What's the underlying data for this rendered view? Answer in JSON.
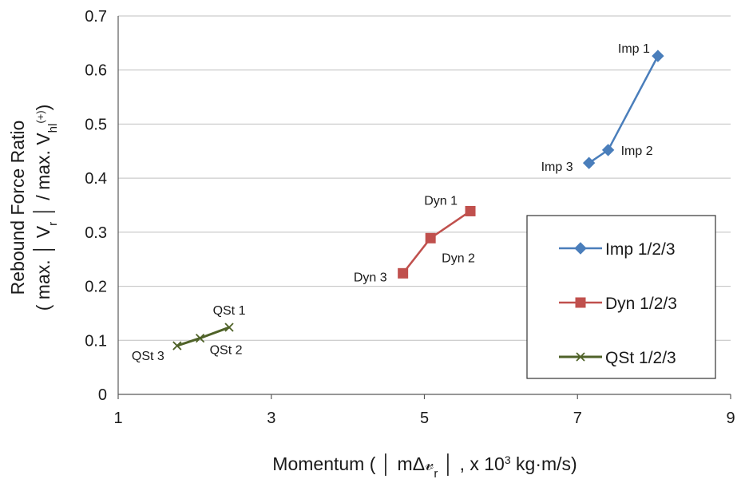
{
  "chart_data": {
    "type": "line",
    "xlabel": "Momentum ( │ mΔ𝓋",
    "xlabel_sub": "r",
    "xlabel_tail": " │ ,  x 10",
    "xlabel_sup": "3",
    "xlabel_unit": " kg·m/s)",
    "ylabel_line1": "Rebound Force Ratio",
    "ylabel_line2_a": "( max. │ V",
    "ylabel_line2_sub1": "r",
    "ylabel_line2_b": " │ / max. V",
    "ylabel_line2_sub2": "hl",
    "ylabel_line2_sup": "(+)",
    "ylabel_line2_c": ")",
    "xlim": [
      1,
      9
    ],
    "ylim": [
      0,
      0.7
    ],
    "xticks": [
      "1",
      "3",
      "5",
      "7",
      "9"
    ],
    "yticks": [
      "0",
      "0.1",
      "0.2",
      "0.3",
      "0.4",
      "0.5",
      "0.6",
      "0.7"
    ],
    "grid": "horizontal",
    "legend_position": "bottom-right",
    "series": [
      {
        "name": "Imp 1/2/3",
        "color": "#4a7ebb",
        "marker": "diamond",
        "points": [
          {
            "x": 8.05,
            "y": 0.626,
            "label": "Imp 1"
          },
          {
            "x": 7.4,
            "y": 0.452,
            "label": "Imp 2"
          },
          {
            "x": 7.15,
            "y": 0.428,
            "label": "Imp 3"
          }
        ]
      },
      {
        "name": "Dyn 1/2/3",
        "color": "#c0504d",
        "marker": "square",
        "points": [
          {
            "x": 5.6,
            "y": 0.339,
            "label": "Dyn 1"
          },
          {
            "x": 5.08,
            "y": 0.289,
            "label": "Dyn 2"
          },
          {
            "x": 4.72,
            "y": 0.224,
            "label": "Dyn 3"
          }
        ]
      },
      {
        "name": "QSt 1/2/3",
        "color": "#4f6228",
        "marker": "x",
        "points": [
          {
            "x": 2.45,
            "y": 0.124,
            "label": "QSt 1"
          },
          {
            "x": 2.07,
            "y": 0.104,
            "label": "QSt 2"
          },
          {
            "x": 1.77,
            "y": 0.09,
            "label": "QSt 3"
          }
        ]
      }
    ]
  }
}
